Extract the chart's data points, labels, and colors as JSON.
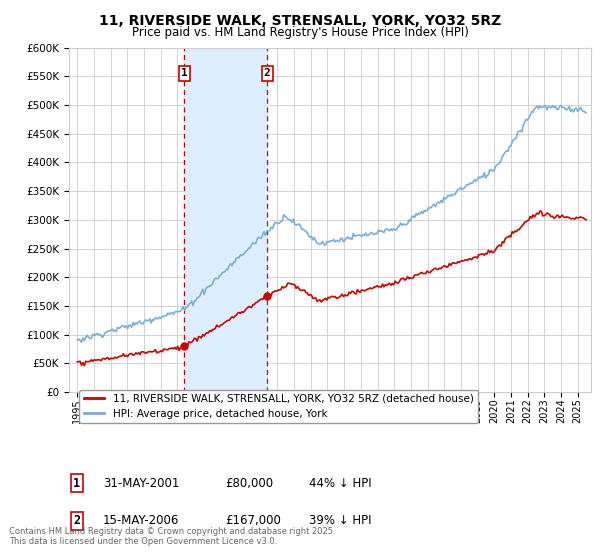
{
  "title": "11, RIVERSIDE WALK, STRENSALL, YORK, YO32 5RZ",
  "subtitle": "Price paid vs. HM Land Registry's House Price Index (HPI)",
  "legend_line1": "11, RIVERSIDE WALK, STRENSALL, YORK, YO32 5RZ (detached house)",
  "legend_line2": "HPI: Average price, detached house, York",
  "marker1_date": "31-MAY-2001",
  "marker1_price": "£80,000",
  "marker1_hpi": "44% ↓ HPI",
  "marker1_x": 2001.42,
  "marker1_y": 80000,
  "marker2_date": "15-MAY-2006",
  "marker2_price": "£167,000",
  "marker2_hpi": "39% ↓ HPI",
  "marker2_x": 2006.38,
  "marker2_y": 167000,
  "copyright": "Contains HM Land Registry data © Crown copyright and database right 2025.\nThis data is licensed under the Open Government Licence v3.0.",
  "ylim": [
    0,
    600000
  ],
  "yticks": [
    0,
    50000,
    100000,
    150000,
    200000,
    250000,
    300000,
    350000,
    400000,
    450000,
    500000,
    550000,
    600000
  ],
  "ytick_labels": [
    "£0",
    "£50K",
    "£100K",
    "£150K",
    "£200K",
    "£250K",
    "£300K",
    "£350K",
    "£400K",
    "£450K",
    "£500K",
    "£550K",
    "£600K"
  ],
  "xlim": [
    1994.5,
    2025.8
  ],
  "background_color": "#ffffff",
  "plot_bg_color": "#ffffff",
  "grid_color": "#cccccc",
  "red_color": "#cc0000",
  "blue_color": "#7ab0d4",
  "shade_color": "#ddeeff"
}
